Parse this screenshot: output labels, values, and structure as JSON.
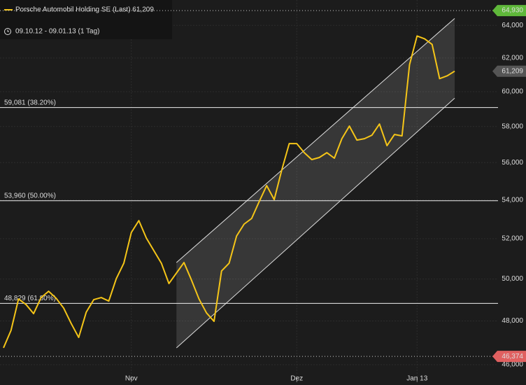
{
  "chart_data": {
    "type": "line",
    "title": "Porsche Automobil Holding SE (Last) 61,209",
    "subtitle": "09.10.12 - 09.01.13 (1 Tag)",
    "categories": [
      null,
      null,
      null,
      null,
      null,
      null,
      null,
      null,
      null,
      null,
      null,
      null,
      null,
      null,
      null,
      null,
      null,
      "Nov",
      null,
      null,
      null,
      null,
      null,
      null,
      null,
      null,
      null,
      null,
      null,
      null,
      null,
      null,
      null,
      null,
      null,
      null,
      null,
      null,
      null,
      "Dez",
      null,
      null,
      null,
      null,
      null,
      null,
      null,
      null,
      null,
      null,
      null,
      null,
      null,
      null,
      null,
      "Jan 13",
      null,
      null,
      null,
      null,
      null
    ],
    "series": [
      {
        "name": "Porsche Automobil Holding SE (Last)",
        "color": "#f5c518",
        "values": [
          46760,
          47561,
          49040,
          48773,
          48344,
          49106,
          49408,
          49073,
          48608,
          47885,
          47237,
          48410,
          49006,
          49106,
          48940,
          50018,
          50773,
          52317,
          52926,
          52032,
          51399,
          50773,
          49780,
          50291,
          50808,
          49950,
          49040,
          48377,
          47983,
          50394,
          50773,
          52139,
          52746,
          53034,
          53908,
          54760,
          54018,
          55588,
          57045,
          57045,
          56542,
          56163,
          56278,
          56542,
          56239,
          57318,
          58025,
          57240,
          57318,
          57514,
          58143,
          56929,
          57553,
          57475,
          61599,
          63343,
          63170,
          62827,
          60766,
          60932,
          61209
        ]
      }
    ],
    "log_scale": true,
    "ylim": [
      45100,
      65600
    ],
    "yticks": [
      {
        "value": 46000,
        "label": "46,000"
      },
      {
        "value": 48000,
        "label": "48,000"
      },
      {
        "value": 50000,
        "label": "50,000"
      },
      {
        "value": 52000,
        "label": "52,000"
      },
      {
        "value": 54000,
        "label": "54,000"
      },
      {
        "value": 56000,
        "label": "56,000"
      },
      {
        "value": 58000,
        "label": "58,000"
      },
      {
        "value": 60000,
        "label": "60,000"
      },
      {
        "value": 62000,
        "label": "62,000"
      },
      {
        "value": 64000,
        "label": "64,000"
      }
    ],
    "grid": true,
    "fib_levels": [
      {
        "value": 59081,
        "label": "59,081 (38.20%)"
      },
      {
        "value": 53960,
        "label": "53,960 (50.00%)"
      },
      {
        "value": 48829,
        "label": "48,829 (61.80%)"
      }
    ],
    "high": {
      "value": 64930,
      "label": "64,930",
      "color": "#5fb83a"
    },
    "low": {
      "value": 46374,
      "label": "46,374",
      "color": "#e06060"
    },
    "last": {
      "value": 61209,
      "label": "61,209",
      "color": "#555555"
    },
    "channel": {
      "x": [
        23,
        60
      ],
      "upper": [
        50808,
        64434
      ],
      "lower": [
        46757,
        59624
      ]
    }
  }
}
